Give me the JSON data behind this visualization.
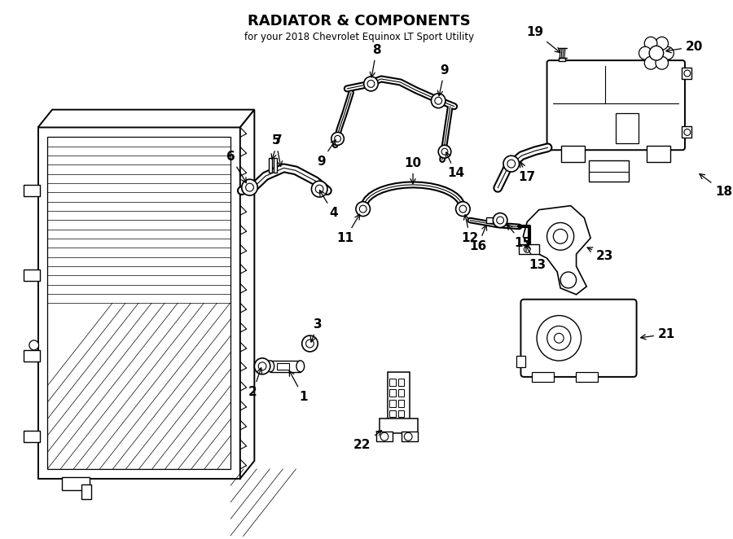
{
  "title": "RADIATOR & COMPONENTS",
  "subtitle": "for your 2018 Chevrolet Equinox LT Sport Utility",
  "bg_color": "#ffffff",
  "line_color": "#000000",
  "text_color": "#000000",
  "fig_width": 9.0,
  "fig_height": 6.62,
  "dpi": 100
}
